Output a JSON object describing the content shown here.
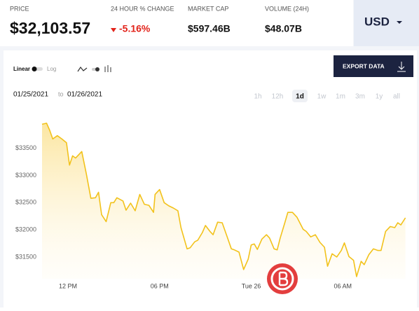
{
  "header": {
    "price_label": "PRICE",
    "price": "$32,103.57",
    "change_label": "24 HOUR % CHANGE",
    "change": "-5.16%",
    "market_cap_label": "MARKET CAP",
    "market_cap": "$597.46B",
    "volume_label": "VOLUME (24H)",
    "volume": "$48.07B",
    "currency": "USD"
  },
  "toolbar": {
    "linear": "Linear",
    "log": "Log",
    "export": "EXPORT DATA",
    "date_from": "01/25/2021",
    "date_sep": "to",
    "date_to": "01/26/2021",
    "ranges": [
      "1h",
      "12h",
      "1d",
      "1w",
      "1m",
      "3m",
      "1y",
      "all"
    ],
    "active_range": "1d"
  },
  "chart_data": {
    "type": "line",
    "color": "#f2c21b",
    "x": [
      10.3,
      10.6,
      10.8,
      11.0,
      11.3,
      11.6,
      11.9,
      12.1,
      12.3,
      12.5,
      12.9,
      13.2,
      13.5,
      13.8,
      14.0,
      14.2,
      14.5,
      14.8,
      15.0,
      15.2,
      15.6,
      15.8,
      16.1,
      16.4,
      16.7,
      17.0,
      17.3,
      17.6,
      17.7,
      18.0,
      18.3,
      18.6,
      18.9,
      19.2,
      19.4,
      19.8,
      20.0,
      20.3,
      20.5,
      20.8,
      21.0,
      21.3,
      21.5,
      21.8,
      22.1,
      22.4,
      22.7,
      22.9,
      23.2,
      23.5,
      23.8,
      24.0,
      24.2,
      24.4,
      24.7,
      25.0,
      25.2,
      25.5,
      25.7,
      25.9,
      26.2,
      26.4,
      26.7,
      27.0,
      27.4,
      27.6,
      27.9,
      28.2,
      28.5,
      28.8,
      29.0,
      29.3,
      29.6,
      29.9,
      30.1,
      30.4,
      30.7,
      30.9,
      31.2,
      31.4,
      31.7,
      32.0,
      32.3,
      32.5,
      32.8,
      33.1,
      33.4,
      33.6,
      33.8,
      34.1
    ],
    "values": [
      33940,
      33960,
      33830,
      33670,
      33730,
      33670,
      33600,
      33190,
      33360,
      33320,
      33440,
      33030,
      32580,
      32590,
      32690,
      32280,
      32150,
      32500,
      32500,
      32590,
      32530,
      32360,
      32490,
      32350,
      32650,
      32470,
      32450,
      32320,
      32650,
      32740,
      32500,
      32440,
      32400,
      32350,
      32040,
      31650,
      31670,
      31780,
      31810,
      31950,
      32080,
      31970,
      31910,
      32140,
      32130,
      31890,
      31650,
      31630,
      31590,
      31270,
      31460,
      31720,
      31740,
      31640,
      31830,
      31910,
      31850,
      31650,
      31630,
      31850,
      32130,
      32320,
      32320,
      32230,
      32010,
      31970,
      31870,
      31910,
      31770,
      31680,
      31330,
      31560,
      31500,
      31620,
      31760,
      31510,
      31440,
      31140,
      31420,
      31360,
      31540,
      31650,
      31620,
      31620,
      31970,
      32060,
      32040,
      32130,
      32090,
      32220
    ],
    "xlim": [
      10.3,
      34.3
    ],
    "xticks": [
      {
        "value": 12,
        "label": "12 PM"
      },
      {
        "value": 18,
        "label": "06 PM"
      },
      {
        "value": 24,
        "label": "Tue 26"
      },
      {
        "value": 30,
        "label": "06 AM"
      }
    ],
    "ylim": [
      31100,
      34100
    ],
    "yticks": [
      {
        "value": 31500,
        "label": "$31500"
      },
      {
        "value": 32000,
        "label": "$32000"
      },
      {
        "value": 32500,
        "label": "$32500"
      },
      {
        "value": 33000,
        "label": "$33000"
      },
      {
        "value": 33500,
        "label": "$33500"
      }
    ]
  }
}
